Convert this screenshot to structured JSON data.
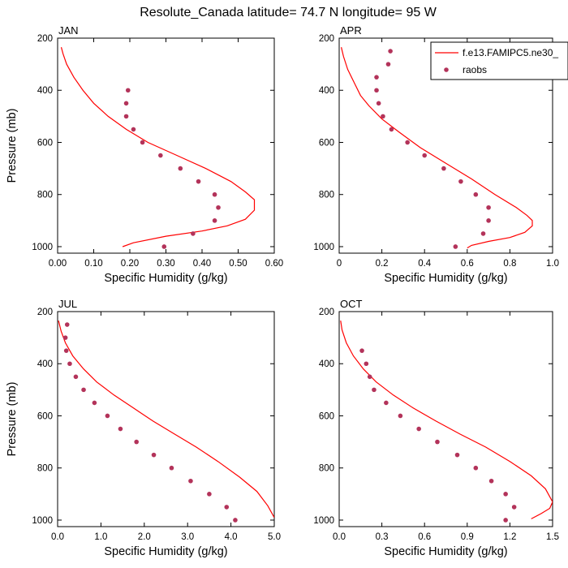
{
  "figure": {
    "title": "Resolute_Canada  latitude= 74.7 N longitude= 95 W",
    "colors": {
      "model": "#ff0000",
      "obs": "#b3335a",
      "axes": "#000000"
    },
    "legend": {
      "model_label": "f.e13.FAMIPC5.ne30_",
      "obs_label": "raobs"
    }
  },
  "chart_data": [
    {
      "type": "line",
      "panel": "JAN",
      "xlabel": "Specific Humidity (g/kg)",
      "ylabel": "Pressure (mb)",
      "xlim": [
        0,
        0.6
      ],
      "ylim": [
        1025,
        200
      ],
      "xticks": [
        0,
        0.1,
        0.2,
        0.3,
        0.4,
        0.5,
        0.6
      ],
      "xtick_labels": [
        "0.00",
        "0.10",
        "0.20",
        "0.30",
        "0.40",
        "0.50",
        "0.60"
      ],
      "yticks": [
        200,
        400,
        600,
        800,
        1000
      ],
      "ytick_labels": [
        "200",
        "400",
        "600",
        "800",
        "1000"
      ],
      "series": [
        {
          "name": "f.e13.FAMIPC5.ne30_",
          "kind": "line",
          "x": [
            0.01,
            0.015,
            0.025,
            0.045,
            0.07,
            0.1,
            0.14,
            0.19,
            0.25,
            0.33,
            0.41,
            0.48,
            0.52,
            0.545,
            0.545,
            0.52,
            0.47,
            0.4,
            0.3,
            0.21,
            0.18
          ],
          "y": [
            235,
            260,
            300,
            350,
            400,
            450,
            500,
            550,
            600,
            650,
            700,
            750,
            790,
            820,
            860,
            895,
            920,
            940,
            960,
            985,
            1000
          ]
        },
        {
          "name": "raobs",
          "kind": "scatter",
          "x": [
            0.195,
            0.19,
            0.19,
            0.21,
            0.235,
            0.285,
            0.34,
            0.39,
            0.435,
            0.445,
            0.435,
            0.375,
            0.295
          ],
          "y": [
            400,
            450,
            500,
            550,
            600,
            650,
            700,
            750,
            800,
            850,
            900,
            950,
            1000
          ]
        }
      ]
    },
    {
      "type": "line",
      "panel": "APR",
      "xlabel": "Specific Humidity (g/kg)",
      "ylabel": "Pressure (mb)",
      "xlim": [
        0,
        1.0
      ],
      "ylim": [
        1025,
        200
      ],
      "xticks": [
        0,
        0.2,
        0.4,
        0.6,
        0.8,
        1.0
      ],
      "xtick_labels": [
        "0",
        "0.2",
        "0.4",
        "0.6",
        "0.8",
        "1.0"
      ],
      "yticks": [
        200,
        400,
        600,
        800,
        1000
      ],
      "ytick_labels": [
        "200",
        "400",
        "600",
        "800",
        "1000"
      ],
      "series": [
        {
          "name": "f.e13.FAMIPC5.ne30_",
          "kind": "line",
          "x": [
            0.01,
            0.02,
            0.04,
            0.07,
            0.1,
            0.14,
            0.2,
            0.28,
            0.38,
            0.5,
            0.62,
            0.73,
            0.83,
            0.88,
            0.905,
            0.905,
            0.87,
            0.8,
            0.7,
            0.62,
            0.6
          ],
          "y": [
            235,
            270,
            320,
            370,
            420,
            460,
            510,
            560,
            620,
            680,
            740,
            800,
            850,
            880,
            900,
            920,
            945,
            965,
            980,
            995,
            1005
          ]
        },
        {
          "name": "raobs",
          "kind": "scatter",
          "x": [
            0.24,
            0.23,
            0.175,
            0.175,
            0.185,
            0.205,
            0.245,
            0.32,
            0.4,
            0.49,
            0.57,
            0.64,
            0.7,
            0.7,
            0.675,
            0.545
          ],
          "y": [
            250,
            300,
            350,
            400,
            450,
            500,
            550,
            600,
            650,
            700,
            750,
            800,
            850,
            900,
            950,
            1000
          ]
        }
      ]
    },
    {
      "type": "line",
      "panel": "JUL",
      "xlabel": "Specific Humidity (g/kg)",
      "ylabel": "Pressure (mb)",
      "xlim": [
        0,
        5.0
      ],
      "ylim": [
        1025,
        200
      ],
      "xticks": [
        0,
        1.0,
        2.0,
        3.0,
        4.0,
        5.0
      ],
      "xtick_labels": [
        "0.0",
        "1.0",
        "2.0",
        "3.0",
        "4.0",
        "5.0"
      ],
      "yticks": [
        200,
        400,
        600,
        800,
        1000
      ],
      "ytick_labels": [
        "200",
        "400",
        "600",
        "800",
        "1000"
      ],
      "series": [
        {
          "name": "f.e13.FAMIPC5.ne30_",
          "kind": "line",
          "x": [
            0.02,
            0.08,
            0.18,
            0.35,
            0.6,
            0.9,
            1.3,
            1.75,
            2.2,
            2.7,
            3.2,
            3.7,
            4.2,
            4.6,
            4.85,
            5.0
          ],
          "y": [
            235,
            275,
            320,
            370,
            420,
            470,
            520,
            570,
            620,
            670,
            720,
            775,
            835,
            890,
            945,
            990
          ]
        },
        {
          "name": "raobs",
          "kind": "scatter",
          "x": [
            0.22,
            0.18,
            0.2,
            0.28,
            0.42,
            0.6,
            0.85,
            1.15,
            1.45,
            1.82,
            2.22,
            2.63,
            3.07,
            3.5,
            3.9,
            4.1
          ],
          "y": [
            250,
            300,
            350,
            400,
            450,
            500,
            550,
            600,
            650,
            700,
            750,
            800,
            850,
            900,
            950,
            1000
          ]
        }
      ]
    },
    {
      "type": "line",
      "panel": "OCT",
      "xlabel": "Specific Humidity (g/kg)",
      "ylabel": "Pressure (mb)",
      "xlim": [
        0,
        1.5
      ],
      "ylim": [
        1025,
        200
      ],
      "xticks": [
        0,
        0.3,
        0.6,
        0.9,
        1.2,
        1.5
      ],
      "xtick_labels": [
        "0.0",
        "0.3",
        "0.6",
        "0.9",
        "1.2",
        "1.5"
      ],
      "yticks": [
        200,
        400,
        600,
        800,
        1000
      ],
      "ytick_labels": [
        "200",
        "400",
        "600",
        "800",
        "1000"
      ],
      "series": [
        {
          "name": "f.e13.FAMIPC5.ne30_",
          "kind": "line",
          "x": [
            0.01,
            0.02,
            0.05,
            0.1,
            0.17,
            0.26,
            0.38,
            0.52,
            0.68,
            0.85,
            1.03,
            1.2,
            1.35,
            1.45,
            1.5,
            1.48,
            1.42,
            1.35
          ],
          "y": [
            235,
            270,
            320,
            370,
            420,
            470,
            520,
            570,
            620,
            670,
            720,
            775,
            830,
            880,
            930,
            955,
            975,
            995
          ]
        },
        {
          "name": "raobs",
          "kind": "scatter",
          "x": [
            0.16,
            0.19,
            0.215,
            0.245,
            0.33,
            0.43,
            0.56,
            0.69,
            0.83,
            0.96,
            1.07,
            1.17,
            1.23,
            1.17
          ],
          "y": [
            350,
            400,
            450,
            500,
            550,
            600,
            650,
            700,
            750,
            800,
            850,
            900,
            950,
            1000
          ]
        }
      ]
    }
  ]
}
